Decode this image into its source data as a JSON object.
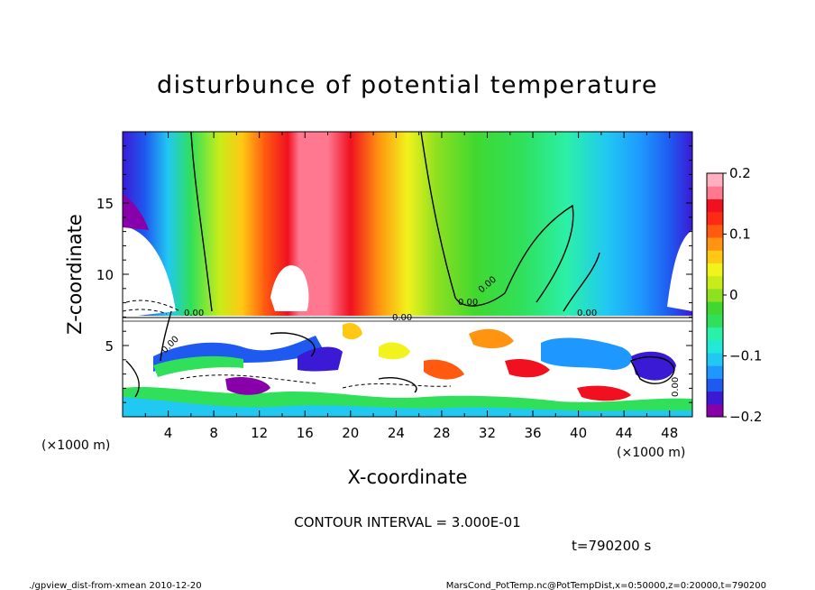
{
  "chart_data": {
    "type": "heatmap",
    "title": "disturbunce of potential temperature",
    "xlabel": "X-coordinate",
    "ylabel": "Z-coordinate",
    "x_unit_label": "(×1000 m)",
    "y_unit_label": "(×1000 m)",
    "xlim": [
      0,
      50
    ],
    "ylim": [
      0,
      20
    ],
    "xticks": [
      "4",
      "8",
      "12",
      "16",
      "20",
      "24",
      "28",
      "32",
      "36",
      "40",
      "44",
      "48"
    ],
    "yticks": [
      "5",
      "10",
      "15"
    ],
    "colorbar": {
      "range": [
        -0.2,
        0.2
      ],
      "ticks": [
        "0.2",
        "0.1",
        "0",
        "−0.1",
        "−0.2"
      ],
      "colors": [
        "#8800aa",
        "#3b1ad6",
        "#1f5af0",
        "#1e98ff",
        "#21c8f2",
        "#22e8d8",
        "#2bf0a8",
        "#30e05a",
        "#40d830",
        "#8fe020",
        "#c8ec1a",
        "#f2f21c",
        "#ffc814",
        "#ff9410",
        "#ff5a10",
        "#ff2a16",
        "#f01020",
        "#ff7890",
        "#ffb0c0"
      ]
    },
    "contour_labels": [
      "0.00",
      "0.00",
      "0.00",
      "0.00",
      "0.00",
      "0.00",
      "0.00"
    ],
    "contour_interval_text": "CONTOUR INTERVAL = 3.000E-01",
    "time_text": "t=790200 s"
  },
  "footer": {
    "left": "./gpview_dist-from-xmean  2010-12-20",
    "right": "MarsCond_PotTemp.nc@PotTempDist,x=0:50000,z=0:20000,t=790200"
  }
}
